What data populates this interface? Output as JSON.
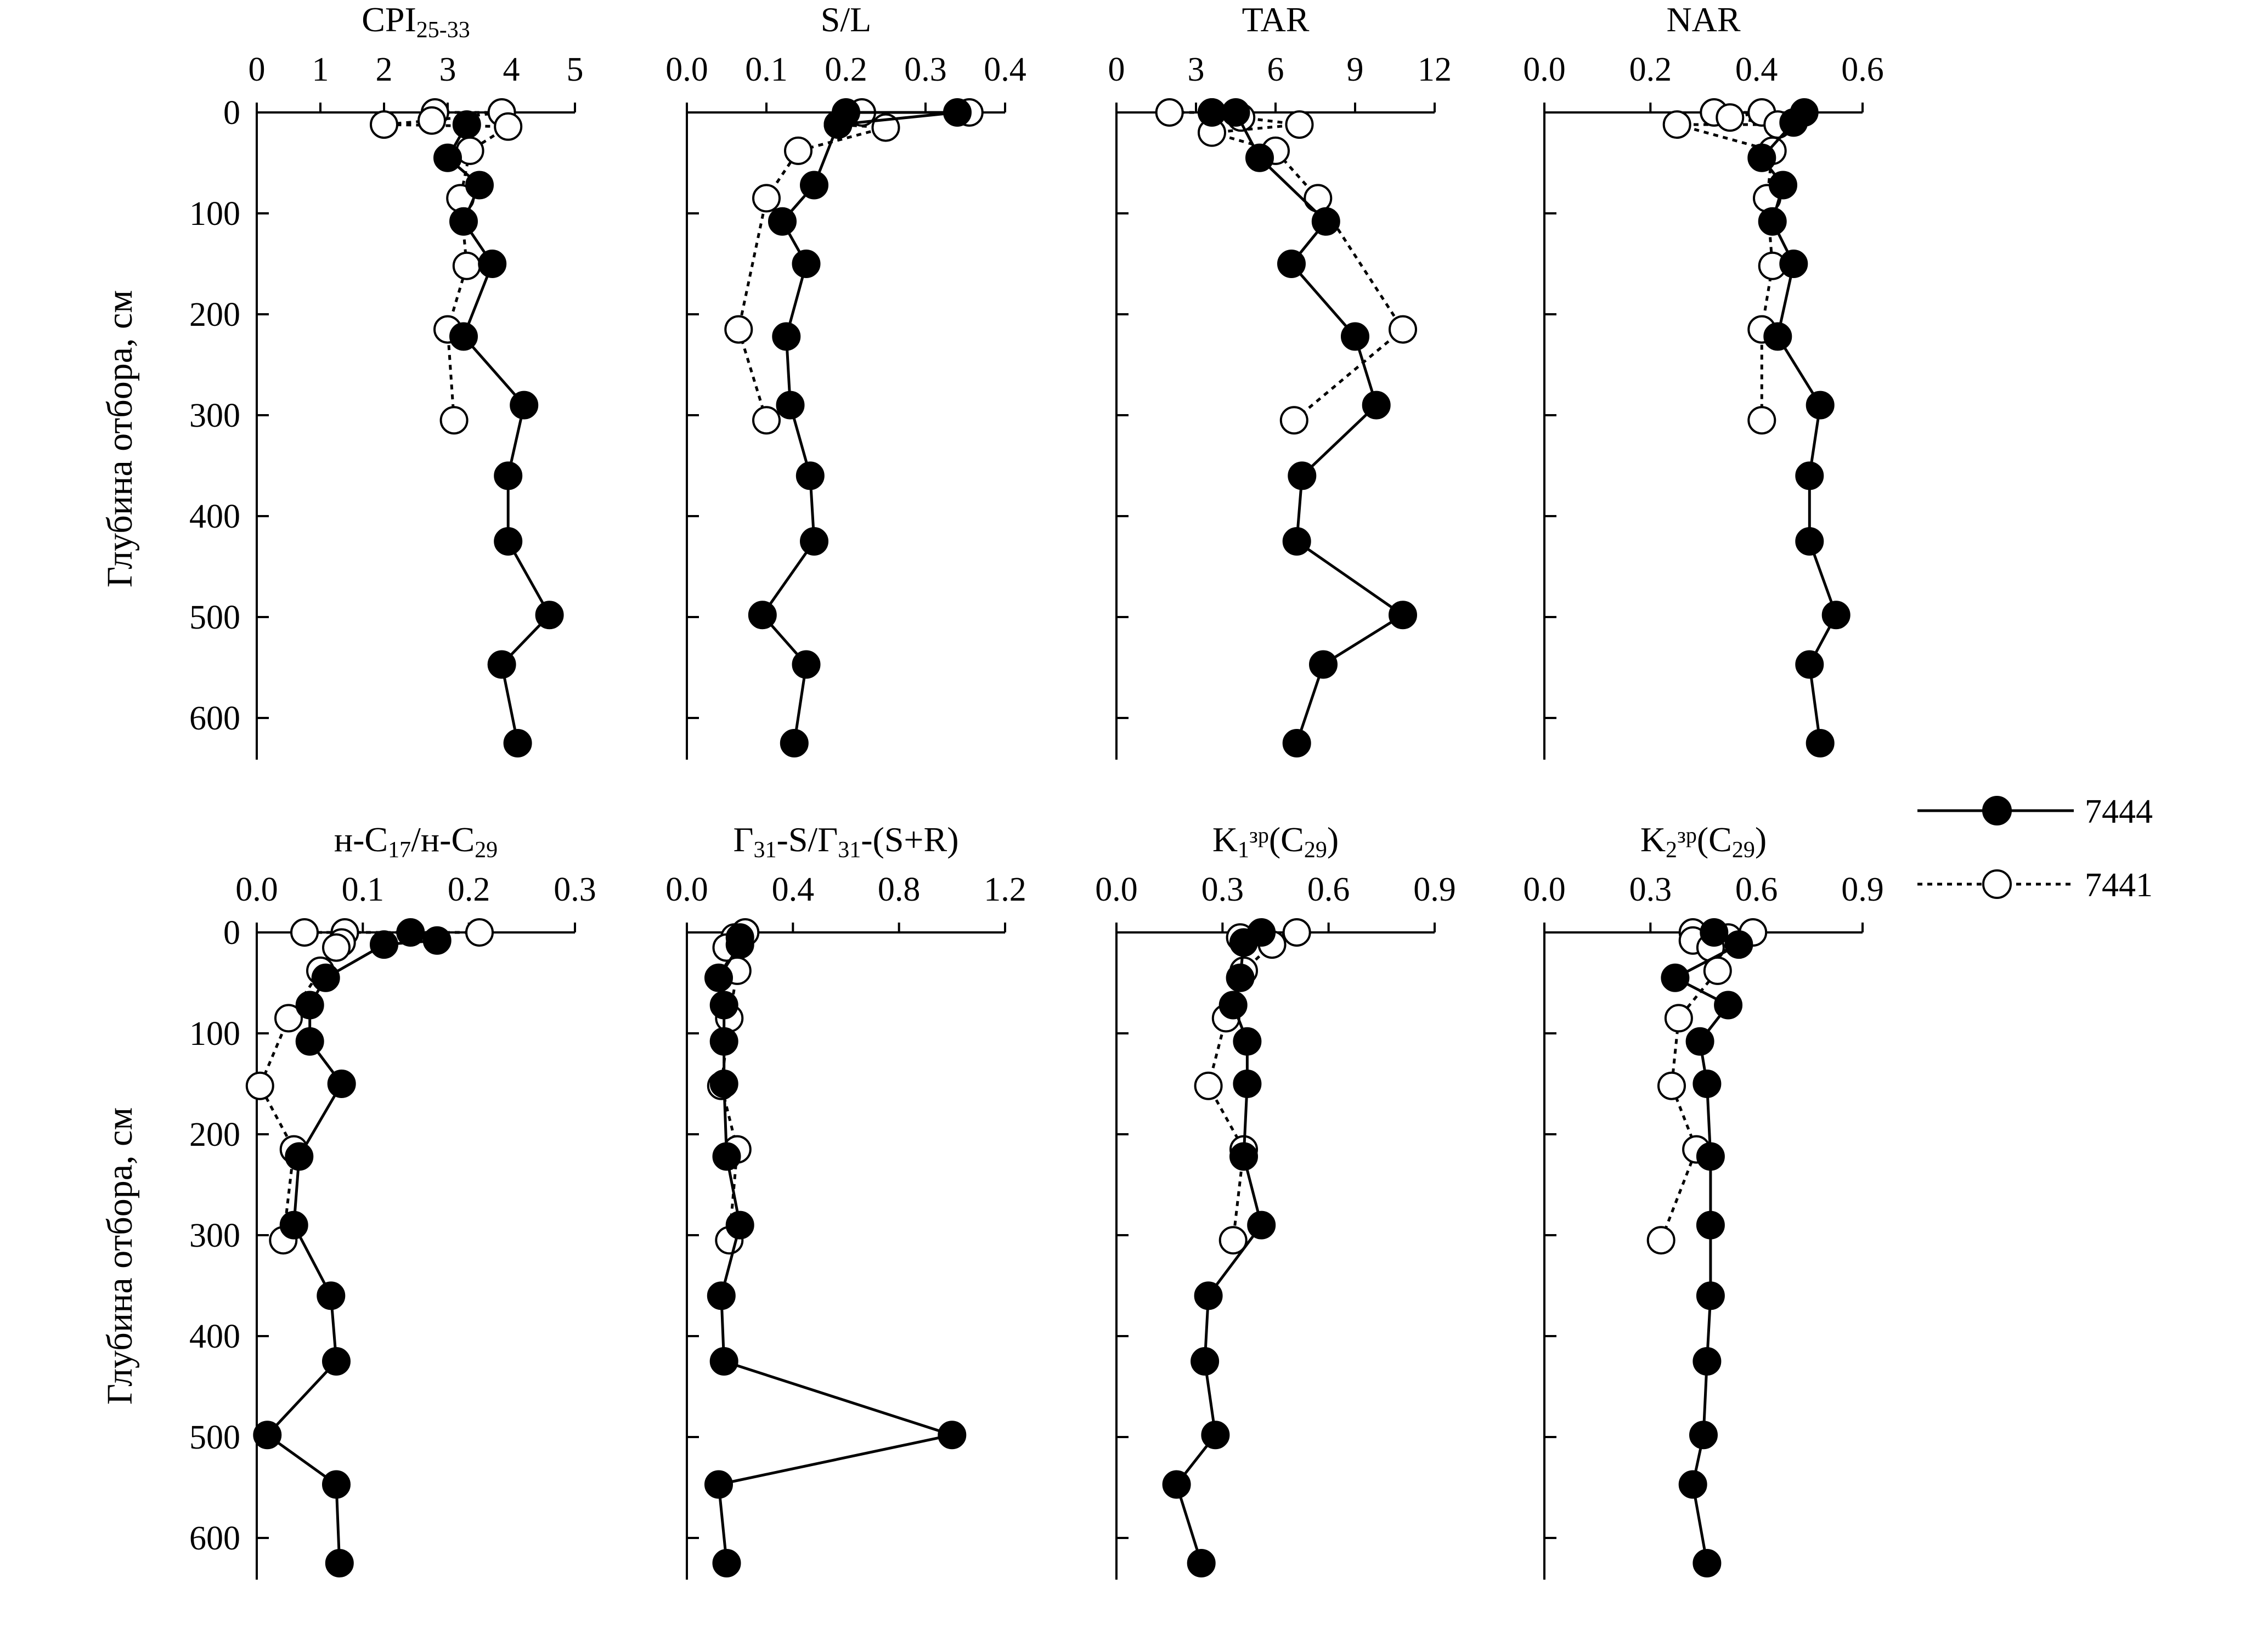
{
  "y_axis_label": "Глубина отбора, см",
  "legend": [
    {
      "name": "7444",
      "style": "solid",
      "marker": "filled"
    },
    {
      "name": "7441",
      "style": "dotted",
      "marker": "open"
    }
  ],
  "chart_data": [
    {
      "type": "scatter",
      "title": "CPI",
      "title_sub": "25-33",
      "xlim": [
        0,
        5
      ],
      "x_ticks": [
        0,
        1,
        2,
        3,
        4,
        5
      ],
      "x_tick_labels": [
        "0",
        "1",
        "2",
        "3",
        "4",
        "5"
      ],
      "ylim": [
        0,
        650
      ],
      "y_ticks": [
        0,
        100,
        200,
        300,
        400,
        500,
        600
      ],
      "y_tick_labels": [
        "0",
        "100",
        "200",
        "300",
        "400",
        "500",
        "600"
      ],
      "xlabel": "",
      "ylabel": "Глубина отбора, см",
      "series": [
        {
          "name": "7444",
          "points": [
            [
              3.3,
              12
            ],
            [
              3.0,
              45
            ],
            [
              3.5,
              72
            ],
            [
              3.25,
              108
            ],
            [
              3.7,
              150
            ],
            [
              3.25,
              222
            ],
            [
              4.2,
              290
            ],
            [
              3.95,
              360
            ],
            [
              3.95,
              425
            ],
            [
              4.6,
              498
            ],
            [
              3.85,
              547
            ],
            [
              4.1,
              625
            ]
          ]
        },
        {
          "name": "7441",
          "points": [
            [
              2.8,
              0
            ],
            [
              3.85,
              0
            ],
            [
              2.0,
              12
            ],
            [
              2.75,
              8
            ],
            [
              3.95,
              14
            ],
            [
              3.35,
              38
            ],
            [
              3.2,
              85
            ],
            [
              3.3,
              152
            ],
            [
              3.0,
              215
            ],
            [
              3.1,
              305
            ]
          ]
        }
      ]
    },
    {
      "type": "scatter",
      "title": "S/L",
      "title_sub": "",
      "xlim": [
        0,
        0.4
      ],
      "x_ticks": [
        0,
        0.1,
        0.2,
        0.3,
        0.4
      ],
      "x_tick_labels": [
        "0.0",
        "0.1",
        "0.2",
        "0.3",
        "0.4"
      ],
      "ylim": [
        0,
        650
      ],
      "y_ticks": [
        0,
        100,
        200,
        300,
        400,
        500,
        600
      ],
      "y_tick_labels": [
        "",
        "",
        "",
        "",
        "",
        "",
        ""
      ],
      "xlabel": "",
      "ylabel": "",
      "series": [
        {
          "name": "7444",
          "points": [
            [
              0.2,
              0
            ],
            [
              0.34,
              0
            ],
            [
              0.19,
              12
            ],
            [
              0.16,
              72
            ],
            [
              0.12,
              108
            ],
            [
              0.15,
              150
            ],
            [
              0.125,
              222
            ],
            [
              0.13,
              290
            ],
            [
              0.155,
              360
            ],
            [
              0.16,
              425
            ],
            [
              0.095,
              498
            ],
            [
              0.15,
              547
            ],
            [
              0.135,
              625
            ]
          ]
        },
        {
          "name": "7441",
          "points": [
            [
              0.355,
              0
            ],
            [
              0.22,
              0
            ],
            [
              0.19,
              12
            ],
            [
              0.25,
              15
            ],
            [
              0.14,
              38
            ],
            [
              0.1,
              85
            ],
            [
              0.065,
              215
            ],
            [
              0.1,
              305
            ]
          ]
        }
      ]
    },
    {
      "type": "scatter",
      "title": "TAR",
      "title_sub": "",
      "xlim": [
        0,
        12
      ],
      "x_ticks": [
        0,
        3,
        6,
        9,
        12
      ],
      "x_tick_labels": [
        "0",
        "3",
        "6",
        "9",
        "12"
      ],
      "ylim": [
        0,
        650
      ],
      "y_ticks": [
        0,
        100,
        200,
        300,
        400,
        500,
        600
      ],
      "y_tick_labels": [
        "",
        "",
        "",
        "",
        "",
        "",
        ""
      ],
      "xlabel": "",
      "ylabel": "",
      "series": [
        {
          "name": "7444",
          "points": [
            [
              3.6,
              0
            ],
            [
              4.5,
              0
            ],
            [
              5.4,
              45
            ],
            [
              7.9,
              108
            ],
            [
              6.6,
              150
            ],
            [
              9.0,
              222
            ],
            [
              9.8,
              290
            ],
            [
              7.0,
              360
            ],
            [
              6.8,
              425
            ],
            [
              10.8,
              498
            ],
            [
              7.8,
              547
            ],
            [
              6.8,
              625
            ]
          ]
        },
        {
          "name": "7441",
          "points": [
            [
              2.0,
              0
            ],
            [
              3.6,
              0
            ],
            [
              4.7,
              5
            ],
            [
              6.9,
              12
            ],
            [
              3.6,
              20
            ],
            [
              6.0,
              38
            ],
            [
              7.6,
              85
            ],
            [
              10.8,
              215
            ],
            [
              6.7,
              305
            ]
          ]
        }
      ]
    },
    {
      "type": "scatter",
      "title": "NAR",
      "title_sub": "",
      "xlim": [
        0,
        0.6
      ],
      "x_ticks": [
        0,
        0.2,
        0.4,
        0.6
      ],
      "x_tick_labels": [
        "0.0",
        "0.2",
        "0.4",
        "0.6"
      ],
      "ylim": [
        0,
        650
      ],
      "y_ticks": [
        0,
        100,
        200,
        300,
        400,
        500,
        600
      ],
      "y_tick_labels": [
        "",
        "",
        "",
        "",
        "",
        "",
        ""
      ],
      "xlabel": "",
      "ylabel": "",
      "series": [
        {
          "name": "7444",
          "points": [
            [
              0.49,
              0
            ],
            [
              0.47,
              10
            ],
            [
              0.41,
              45
            ],
            [
              0.45,
              72
            ],
            [
              0.43,
              108
            ],
            [
              0.47,
              150
            ],
            [
              0.44,
              222
            ],
            [
              0.52,
              290
            ],
            [
              0.5,
              360
            ],
            [
              0.5,
              425
            ],
            [
              0.55,
              498
            ],
            [
              0.5,
              547
            ],
            [
              0.52,
              625
            ]
          ]
        },
        {
          "name": "7441",
          "points": [
            [
              0.32,
              0
            ],
            [
              0.41,
              0
            ],
            [
              0.35,
              5
            ],
            [
              0.44,
              12
            ],
            [
              0.25,
              12
            ],
            [
              0.43,
              38
            ],
            [
              0.42,
              85
            ],
            [
              0.43,
              152
            ],
            [
              0.41,
              215
            ],
            [
              0.41,
              305
            ]
          ]
        }
      ]
    },
    {
      "type": "scatter",
      "title": "C",
      "title_sub": "",
      "title_rich": [
        [
          "н-C",
          ""
        ],
        [
          "17",
          "sub"
        ],
        [
          "/н-C",
          ""
        ],
        [
          "29",
          "sub"
        ]
      ],
      "xlim": [
        0,
        0.3
      ],
      "x_ticks": [
        0,
        0.1,
        0.2,
        0.3
      ],
      "x_tick_labels": [
        "0.0",
        "0.1",
        "0.2",
        "0.3"
      ],
      "ylim": [
        0,
        650
      ],
      "y_ticks": [
        0,
        100,
        200,
        300,
        400,
        500,
        600
      ],
      "y_tick_labels": [
        "0",
        "100",
        "200",
        "300",
        "400",
        "500",
        "600"
      ],
      "xlabel": "",
      "ylabel": "Глубина отбора, см",
      "series": [
        {
          "name": "7444",
          "points": [
            [
              0.145,
              0
            ],
            [
              0.17,
              8
            ],
            [
              0.12,
              12
            ],
            [
              0.065,
              45
            ],
            [
              0.05,
              72
            ],
            [
              0.05,
              108
            ],
            [
              0.08,
              150
            ],
            [
              0.04,
              222
            ],
            [
              0.035,
              290
            ],
            [
              0.07,
              360
            ],
            [
              0.075,
              425
            ],
            [
              0.01,
              498
            ],
            [
              0.075,
              547
            ],
            [
              0.078,
              625
            ]
          ]
        },
        {
          "name": "7441",
          "points": [
            [
              0.21,
              0
            ],
            [
              0.045,
              0
            ],
            [
              0.083,
              0
            ],
            [
              0.08,
              10
            ],
            [
              0.075,
              15
            ],
            [
              0.06,
              38
            ],
            [
              0.03,
              85
            ],
            [
              0.003,
              152
            ],
            [
              0.035,
              215
            ],
            [
              0.025,
              305
            ]
          ]
        }
      ]
    },
    {
      "type": "scatter",
      "title": "Г",
      "title_sub": "",
      "title_rich": [
        [
          "Г",
          ""
        ],
        [
          "31",
          "sub"
        ],
        [
          "-S/Г",
          ""
        ],
        [
          "31",
          "sub"
        ],
        [
          "-(S+R)",
          ""
        ]
      ],
      "xlim": [
        0,
        1.2
      ],
      "x_ticks": [
        0,
        0.4,
        0.8,
        1.2
      ],
      "x_tick_labels": [
        "0.0",
        "0.4",
        "0.8",
        "1.2"
      ],
      "ylim": [
        0,
        650
      ],
      "y_ticks": [
        0,
        100,
        200,
        300,
        400,
        500,
        600
      ],
      "y_tick_labels": [
        "",
        "",
        "",
        "",
        "",
        "",
        ""
      ],
      "xlabel": "",
      "ylabel": "",
      "series": [
        {
          "name": "7444",
          "points": [
            [
              0.2,
              5
            ],
            [
              0.2,
              12
            ],
            [
              0.12,
              45
            ],
            [
              0.14,
              72
            ],
            [
              0.14,
              108
            ],
            [
              0.14,
              150
            ],
            [
              0.15,
              222
            ],
            [
              0.2,
              290
            ],
            [
              0.13,
              360
            ],
            [
              0.14,
              425
            ],
            [
              1.0,
              498
            ],
            [
              0.12,
              547
            ],
            [
              0.15,
              625
            ]
          ]
        },
        {
          "name": "7441",
          "points": [
            [
              0.22,
              0
            ],
            [
              0.18,
              5
            ],
            [
              0.15,
              15
            ],
            [
              0.19,
              38
            ],
            [
              0.16,
              85
            ],
            [
              0.13,
              152
            ],
            [
              0.19,
              215
            ],
            [
              0.16,
              305
            ]
          ]
        }
      ]
    },
    {
      "type": "scatter",
      "title": "K",
      "title_sub": "",
      "title_rich": [
        [
          "K",
          ""
        ],
        [
          "1",
          "sub"
        ],
        [
          "зр",
          "sup"
        ],
        [
          "(C",
          ""
        ],
        [
          "29",
          "sub"
        ],
        [
          ")",
          ""
        ]
      ],
      "xlim": [
        0,
        0.9
      ],
      "x_ticks": [
        0,
        0.3,
        0.6,
        0.9
      ],
      "x_tick_labels": [
        "0.0",
        "0.3",
        "0.6",
        "0.9"
      ],
      "ylim": [
        0,
        650
      ],
      "y_ticks": [
        0,
        100,
        200,
        300,
        400,
        500,
        600
      ],
      "y_tick_labels": [
        "",
        "",
        "",
        "",
        "",
        "",
        ""
      ],
      "xlabel": "",
      "ylabel": "",
      "series": [
        {
          "name": "7444",
          "points": [
            [
              0.41,
              0
            ],
            [
              0.36,
              10
            ],
            [
              0.35,
              45
            ],
            [
              0.33,
              72
            ],
            [
              0.37,
              108
            ],
            [
              0.37,
              150
            ],
            [
              0.36,
              222
            ],
            [
              0.41,
              290
            ],
            [
              0.26,
              360
            ],
            [
              0.25,
              425
            ],
            [
              0.28,
              498
            ],
            [
              0.17,
              547
            ],
            [
              0.24,
              625
            ]
          ]
        },
        {
          "name": "7441",
          "points": [
            [
              0.51,
              0
            ],
            [
              0.35,
              5
            ],
            [
              0.44,
              12
            ],
            [
              0.36,
              10
            ],
            [
              0.36,
              38
            ],
            [
              0.31,
              85
            ],
            [
              0.26,
              152
            ],
            [
              0.36,
              215
            ],
            [
              0.33,
              305
            ]
          ]
        }
      ]
    },
    {
      "type": "scatter",
      "title": "K",
      "title_sub": "",
      "title_rich": [
        [
          "K",
          ""
        ],
        [
          "2",
          "sub"
        ],
        [
          "зр",
          "sup"
        ],
        [
          "(C",
          ""
        ],
        [
          "29",
          "sub"
        ],
        [
          ")",
          ""
        ]
      ],
      "xlim": [
        0,
        0.9
      ],
      "x_ticks": [
        0,
        0.3,
        0.6,
        0.9
      ],
      "x_tick_labels": [
        "0.0",
        "0.3",
        "0.6",
        "0.9"
      ],
      "ylim": [
        0,
        650
      ],
      "y_ticks": [
        0,
        100,
        200,
        300,
        400,
        500,
        600
      ],
      "y_tick_labels": [
        "",
        "",
        "",
        "",
        "",
        "",
        ""
      ],
      "xlabel": "",
      "ylabel": "",
      "series": [
        {
          "name": "7444",
          "points": [
            [
              0.48,
              0
            ],
            [
              0.55,
              12
            ],
            [
              0.37,
              45
            ],
            [
              0.52,
              72
            ],
            [
              0.44,
              108
            ],
            [
              0.46,
              150
            ],
            [
              0.47,
              222
            ],
            [
              0.47,
              290
            ],
            [
              0.47,
              360
            ],
            [
              0.46,
              425
            ],
            [
              0.45,
              498
            ],
            [
              0.42,
              547
            ],
            [
              0.46,
              625
            ]
          ]
        },
        {
          "name": "7441",
          "points": [
            [
              0.59,
              0
            ],
            [
              0.42,
              0
            ],
            [
              0.42,
              8
            ],
            [
              0.52,
              5
            ],
            [
              0.47,
              15
            ],
            [
              0.49,
              38
            ],
            [
              0.38,
              85
            ],
            [
              0.36,
              152
            ],
            [
              0.43,
              215
            ],
            [
              0.33,
              305
            ]
          ]
        }
      ]
    }
  ]
}
